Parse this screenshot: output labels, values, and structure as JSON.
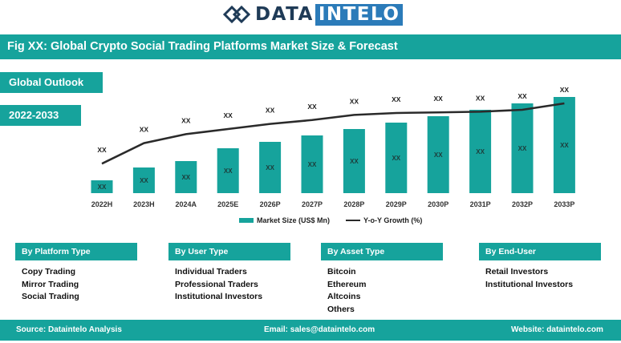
{
  "brand": {
    "name_part1": "DATA",
    "name_part2": "INTELO"
  },
  "title": "Fig XX: Global Crypto Social Trading Platforms Market Size & Forecast",
  "tags": {
    "outlook": "Global Outlook",
    "period": "2022-2033"
  },
  "chart_data": {
    "type": "bar",
    "categories": [
      "2022H",
      "2023H",
      "2024A",
      "2025E",
      "2026P",
      "2027P",
      "2028P",
      "2029P",
      "2030P",
      "2031P",
      "2032P",
      "2033P"
    ],
    "series": [
      {
        "name": "Market Size (US$ Mn)",
        "type": "bar",
        "values": [
          1.0,
          2.0,
          2.5,
          3.5,
          4.0,
          4.5,
          5.0,
          5.5,
          6.0,
          6.5,
          7.0,
          7.5
        ],
        "labels": [
          "XX",
          "XX",
          "XX",
          "XX",
          "XX",
          "XX",
          "XX",
          "XX",
          "XX",
          "XX",
          "XX",
          "XX"
        ]
      },
      {
        "name": "Y-o-Y Growth (%)",
        "type": "line",
        "values": [
          2.3,
          3.9,
          4.6,
          5.0,
          5.4,
          5.7,
          6.1,
          6.25,
          6.3,
          6.35,
          6.5,
          7.0
        ],
        "labels": [
          "XX",
          "XX",
          "XX",
          "XX",
          "XX",
          "XX",
          "XX",
          "XX",
          "XX",
          "XX",
          "XX",
          "XX"
        ]
      }
    ],
    "ylim": [
      0,
      8
    ],
    "colors": {
      "bar": "#16a39c",
      "line": "#2a2a2a"
    },
    "legend_position": "bottom"
  },
  "segments": [
    {
      "title": "By Platform Type",
      "items": [
        "Copy Trading",
        "Mirror Trading",
        "Social Trading"
      ]
    },
    {
      "title": "By User Type",
      "items": [
        "Individual Traders",
        "Professional Traders",
        "Institutional Investors"
      ]
    },
    {
      "title": "By Asset Type",
      "items": [
        "Bitcoin",
        "Ethereum",
        "Altcoins",
        "Others"
      ]
    },
    {
      "title": "By End-User",
      "items": [
        "Retail Investors",
        "Institutional Investors"
      ]
    }
  ],
  "footer": {
    "source": "Source: Dataintelo  Analysis",
    "email": "Email: sales@dataintelo.com",
    "website": "Website: dataintelo.com"
  }
}
